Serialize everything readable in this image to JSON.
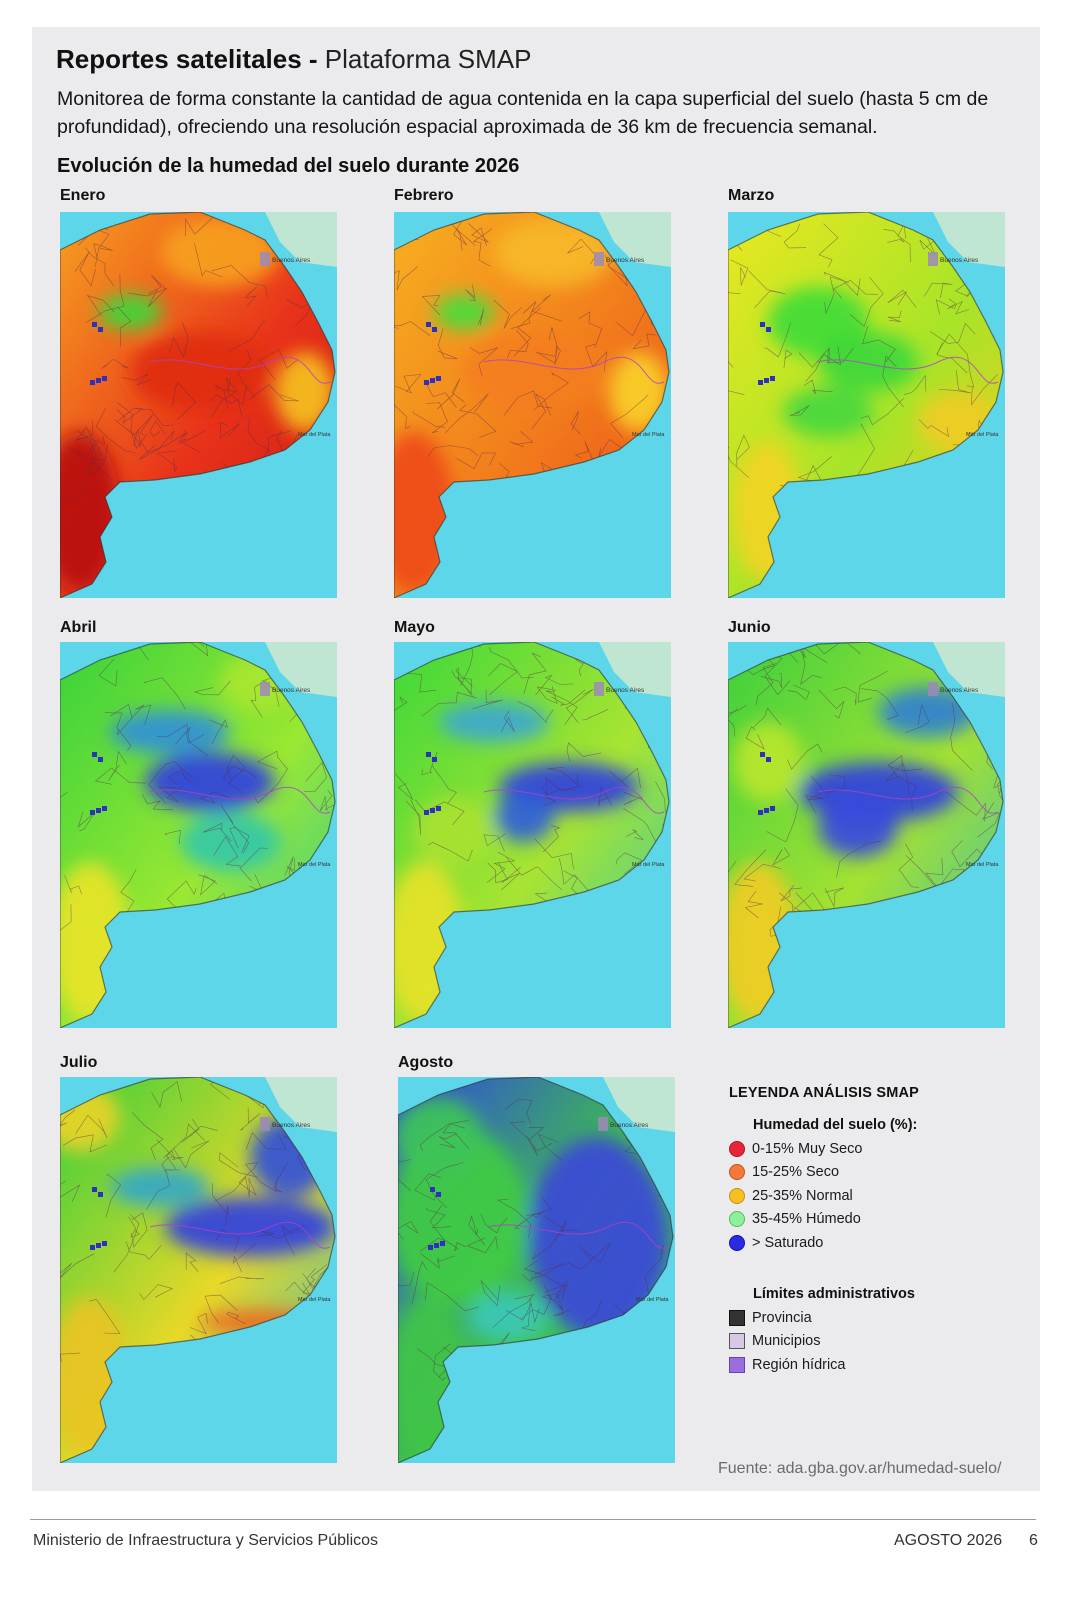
{
  "header": {
    "title_bold": "Reportes satelitales -",
    "title_light": "Plataforma SMAP",
    "description": "Monitorea de forma constante la cantidad de agua contenida en la capa superficial del suelo (hasta 5 cm de profundidad), ofreciendo una resolución espacial aproximada de 36 km de frecuencia semanal.",
    "section_title": "Evolución de la humedad del suelo durante 2026"
  },
  "maps": [
    {
      "month": "Enero",
      "dominant_class": "0-15% Muy Seco"
    },
    {
      "month": "Febrero",
      "dominant_class": "15-25% Seco"
    },
    {
      "month": "Marzo",
      "dominant_class": "25-35% Normal"
    },
    {
      "month": "Abril",
      "dominant_class": "35-45% Húmedo"
    },
    {
      "month": "Mayo",
      "dominant_class": "35-45% Húmedo"
    },
    {
      "month": "Junio",
      "dominant_class": "35-45% Húmedo"
    },
    {
      "month": "Julio",
      "dominant_class": "35-45% Húmedo"
    },
    {
      "month": "Agosto",
      "dominant_class": "> Saturado"
    }
  ],
  "map_labels": {
    "city": "Buenos Aires",
    "coast_city": "Mar del Plata"
  },
  "legend": {
    "title": "LEYENDA ANÁLISIS SMAP",
    "moisture_title": "Humedad del suelo (%):",
    "moisture_items": [
      {
        "label": "0-15% Muy Seco",
        "color": "#e8243b"
      },
      {
        "label": "15-25% Seco",
        "color": "#f4783c"
      },
      {
        "label": "25-35% Normal",
        "color": "#f6c020"
      },
      {
        "label": "35-45% Húmedo",
        "color": "#8ef09a"
      },
      {
        "label": "> Saturado",
        "color": "#2a2ae6"
      }
    ],
    "limits_title": "Límites administrativos",
    "limit_items": [
      {
        "label": "Provincia",
        "color": "#333333"
      },
      {
        "label": "Municipios",
        "color": "#d8c8e8"
      },
      {
        "label": "Región hídrica",
        "color": "#9b6ee0"
      }
    ]
  },
  "source": "Fuente: ada.gba.gov.ar/humedad-suelo/",
  "footer": {
    "ministry": "Ministerio de Infraestructura y Servicios Públicos",
    "date": "AGOSTO 2026",
    "page": "6"
  }
}
